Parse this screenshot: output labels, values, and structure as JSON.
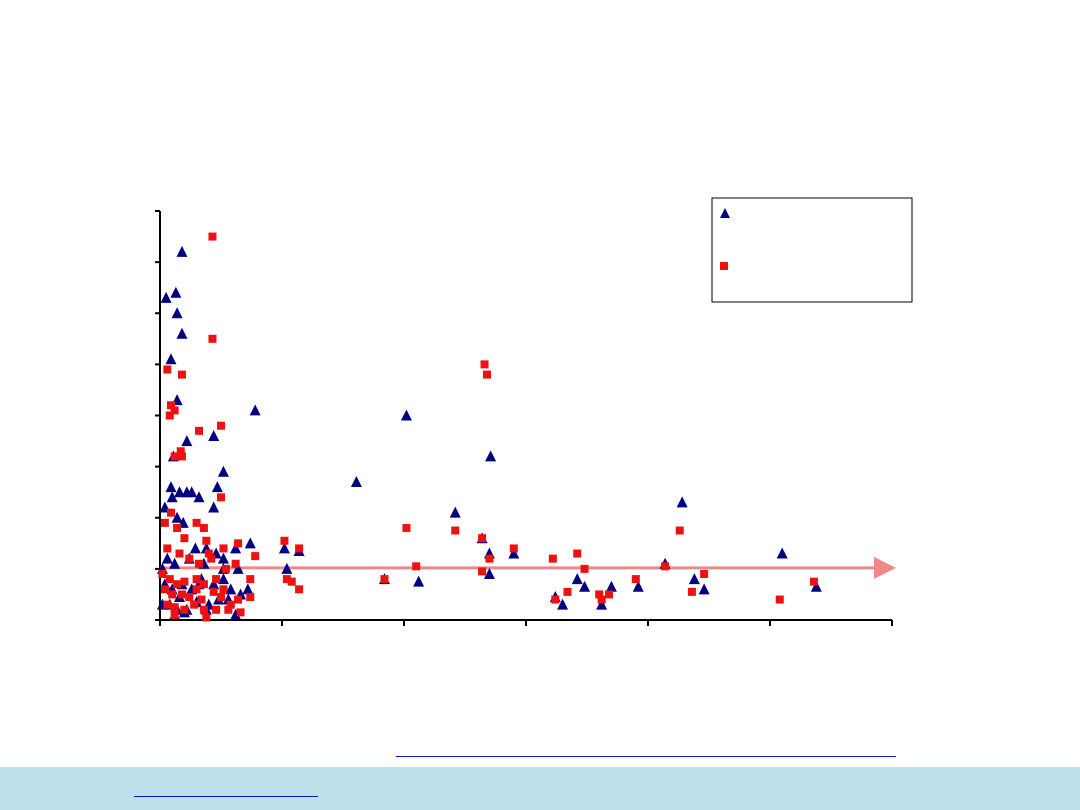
{
  "colors": {
    "background": "#ffffff",
    "footer_band": "#bee0ea",
    "link_underline": "#1010cc",
    "series_triangle": "#000080",
    "series_square": "#ee1111",
    "reference_line": "#f08888",
    "axis": "#000000"
  },
  "chart_data": {
    "type": "scatter",
    "title": "",
    "xlabel": "",
    "ylabel": "",
    "xlim": [
      0,
      6
    ],
    "ylim": [
      0,
      8
    ],
    "x_ticks": [
      0,
      1,
      2,
      3,
      4,
      5,
      6
    ],
    "y_ticks": [
      0,
      1,
      2,
      3,
      4,
      5,
      6,
      7,
      8
    ],
    "grid": false,
    "legend": "top-right",
    "reference_line": {
      "y": 1.02,
      "arrow": "right"
    },
    "series": [
      {
        "marker": "triangle",
        "color": "#000080",
        "points": [
          [
            0.05,
            6.3
          ],
          [
            0.13,
            6.4
          ],
          [
            0.18,
            7.2
          ],
          [
            0.14,
            6.0
          ],
          [
            0.18,
            5.6
          ],
          [
            0.09,
            5.1
          ],
          [
            0.14,
            4.3
          ],
          [
            0.22,
            3.5
          ],
          [
            0.11,
            3.2
          ],
          [
            0.44,
            3.6
          ],
          [
            0.78,
            4.1
          ],
          [
            0.52,
            2.9
          ],
          [
            0.47,
            2.6
          ],
          [
            0.09,
            2.6
          ],
          [
            0.16,
            2.5
          ],
          [
            0.22,
            2.5
          ],
          [
            0.26,
            2.5
          ],
          [
            0.32,
            2.4
          ],
          [
            0.44,
            2.2
          ],
          [
            0.04,
            2.2
          ],
          [
            0.1,
            2.4
          ],
          [
            0.14,
            2.0
          ],
          [
            0.19,
            1.9
          ],
          [
            0.29,
            1.4
          ],
          [
            0.38,
            1.4
          ],
          [
            0.46,
            1.3
          ],
          [
            0.52,
            1.2
          ],
          [
            0.62,
            1.4
          ],
          [
            0.74,
            1.5
          ],
          [
            1.02,
            1.4
          ],
          [
            1.04,
            1.0
          ],
          [
            1.14,
            1.35
          ],
          [
            1.61,
            2.7
          ],
          [
            2.02,
            4.0
          ],
          [
            2.42,
            2.1
          ],
          [
            2.64,
            1.6
          ],
          [
            2.71,
            3.2
          ],
          [
            2.7,
            1.3
          ],
          [
            2.9,
            1.3
          ],
          [
            2.7,
            0.9
          ],
          [
            0.02,
            1.0
          ],
          [
            0.06,
            1.2
          ],
          [
            0.12,
            1.1
          ],
          [
            0.24,
            1.2
          ],
          [
            0.36,
            1.1
          ],
          [
            0.52,
            1.0
          ],
          [
            0.64,
            1.0
          ],
          [
            0.04,
            0.7
          ],
          [
            0.1,
            0.6
          ],
          [
            0.18,
            0.7
          ],
          [
            0.26,
            0.6
          ],
          [
            0.34,
            0.8
          ],
          [
            0.44,
            0.7
          ],
          [
            0.52,
            0.8
          ],
          [
            0.58,
            0.6
          ],
          [
            0.66,
            0.5
          ],
          [
            0.02,
            0.3
          ],
          [
            0.08,
            0.3
          ],
          [
            0.14,
            0.2
          ],
          [
            0.22,
            0.2
          ],
          [
            0.3,
            0.35
          ],
          [
            0.4,
            0.3
          ],
          [
            0.48,
            0.4
          ],
          [
            0.56,
            0.4
          ],
          [
            0.62,
            0.1
          ],
          [
            0.12,
            0.1
          ],
          [
            0.2,
            0.15
          ],
          [
            0.38,
            0.2
          ],
          [
            0.16,
            0.45
          ],
          [
            1.84,
            0.8
          ],
          [
            2.12,
            0.75
          ],
          [
            3.24,
            0.45
          ],
          [
            3.3,
            0.3
          ],
          [
            3.42,
            0.8
          ],
          [
            3.48,
            0.65
          ],
          [
            3.62,
            0.3
          ],
          [
            3.7,
            0.65
          ],
          [
            3.92,
            0.65
          ],
          [
            4.14,
            1.1
          ],
          [
            4.28,
            2.3
          ],
          [
            4.38,
            0.8
          ],
          [
            4.46,
            0.6
          ],
          [
            5.1,
            1.3
          ],
          [
            5.38,
            0.65
          ],
          [
            0.32,
            0.7
          ],
          [
            0.72,
            0.6
          ]
        ]
      },
      {
        "marker": "square",
        "color": "#ee1111",
        "points": [
          [
            0.43,
            7.5
          ],
          [
            0.43,
            5.5
          ],
          [
            0.18,
            4.8
          ],
          [
            0.06,
            4.9
          ],
          [
            0.09,
            4.2
          ],
          [
            0.12,
            4.1
          ],
          [
            0.08,
            4.0
          ],
          [
            0.5,
            3.8
          ],
          [
            0.32,
            3.7
          ],
          [
            0.17,
            3.3
          ],
          [
            0.12,
            3.2
          ],
          [
            0.18,
            3.2
          ],
          [
            0.5,
            2.4
          ],
          [
            0.09,
            2.1
          ],
          [
            0.3,
            1.9
          ],
          [
            0.36,
            1.8
          ],
          [
            0.38,
            1.55
          ],
          [
            0.64,
            1.5
          ],
          [
            0.52,
            1.4
          ],
          [
            0.78,
            1.25
          ],
          [
            1.02,
            1.55
          ],
          [
            1.14,
            1.4
          ],
          [
            2.02,
            1.8
          ],
          [
            2.42,
            1.75
          ],
          [
            2.66,
            5.0
          ],
          [
            2.68,
            4.8
          ],
          [
            2.64,
            1.6
          ],
          [
            2.7,
            1.2
          ],
          [
            2.9,
            1.4
          ],
          [
            0.04,
            1.9
          ],
          [
            0.14,
            1.8
          ],
          [
            0.2,
            1.6
          ],
          [
            0.06,
            1.4
          ],
          [
            0.16,
            1.3
          ],
          [
            0.24,
            1.2
          ],
          [
            0.32,
            1.1
          ],
          [
            0.42,
            1.2
          ],
          [
            0.54,
            1.0
          ],
          [
            0.62,
            1.1
          ],
          [
            0.02,
            0.9
          ],
          [
            0.08,
            0.8
          ],
          [
            0.14,
            0.7
          ],
          [
            0.2,
            0.75
          ],
          [
            0.3,
            0.8
          ],
          [
            0.36,
            0.7
          ],
          [
            0.46,
            0.8
          ],
          [
            0.52,
            0.6
          ],
          [
            0.74,
            0.8
          ],
          [
            0.04,
            0.6
          ],
          [
            0.1,
            0.5
          ],
          [
            0.18,
            0.5
          ],
          [
            0.24,
            0.45
          ],
          [
            0.34,
            0.4
          ],
          [
            0.44,
            0.55
          ],
          [
            0.5,
            0.45
          ],
          [
            0.58,
            0.3
          ],
          [
            0.64,
            0.4
          ],
          [
            0.74,
            0.45
          ],
          [
            0.06,
            0.3
          ],
          [
            0.12,
            0.25
          ],
          [
            0.2,
            0.2
          ],
          [
            0.28,
            0.3
          ],
          [
            0.36,
            0.2
          ],
          [
            0.46,
            0.2
          ],
          [
            0.56,
            0.2
          ],
          [
            0.66,
            0.15
          ],
          [
            0.12,
            0.1
          ],
          [
            0.38,
            0.05
          ],
          [
            1.04,
            0.8
          ],
          [
            1.08,
            0.75
          ],
          [
            1.14,
            0.6
          ],
          [
            1.84,
            0.8
          ],
          [
            2.1,
            1.05
          ],
          [
            2.64,
            0.95
          ],
          [
            3.24,
            0.4
          ],
          [
            3.22,
            1.2
          ],
          [
            3.34,
            0.55
          ],
          [
            3.42,
            1.3
          ],
          [
            3.48,
            1.0
          ],
          [
            3.6,
            0.5
          ],
          [
            3.62,
            0.4
          ],
          [
            3.68,
            0.5
          ],
          [
            3.9,
            0.8
          ],
          [
            4.14,
            1.05
          ],
          [
            4.26,
            1.75
          ],
          [
            4.36,
            0.55
          ],
          [
            4.46,
            0.9
          ],
          [
            5.08,
            0.4
          ],
          [
            5.36,
            0.75
          ],
          [
            0.4,
            1.3
          ],
          [
            0.3,
            0.6
          ]
        ]
      }
    ]
  }
}
